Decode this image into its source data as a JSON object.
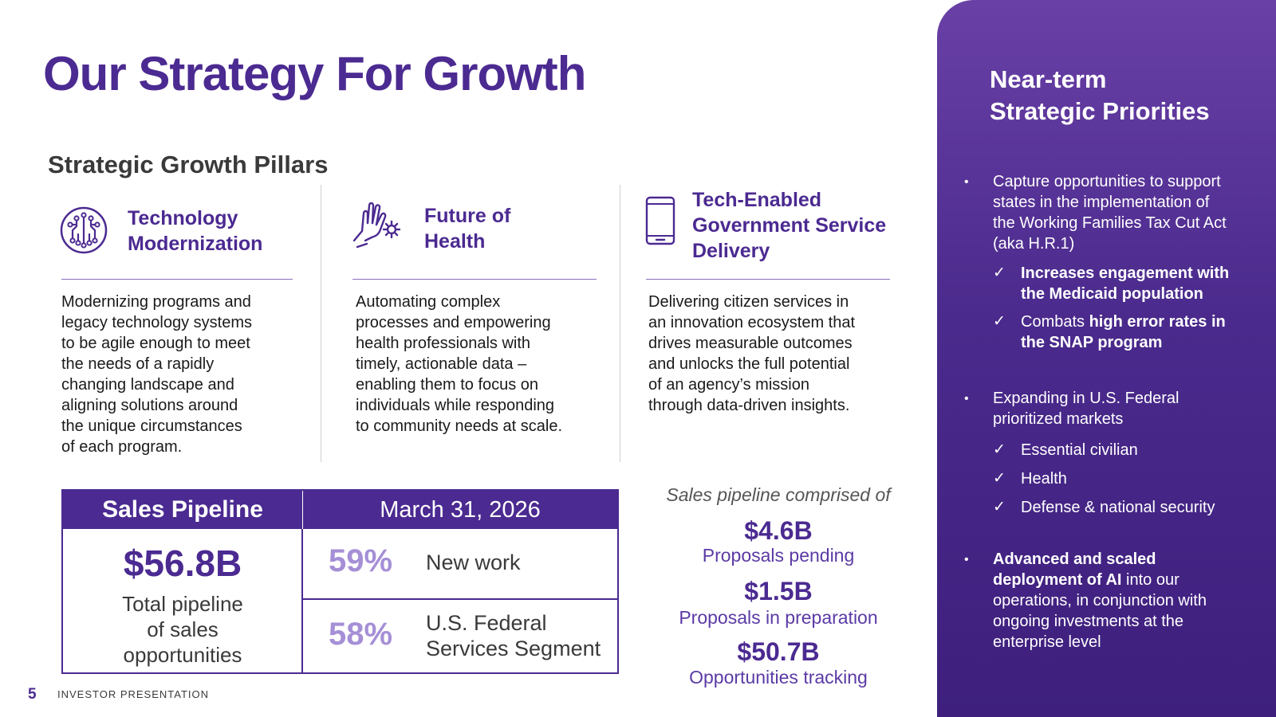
{
  "title": "Our Strategy For Growth",
  "pillars_heading": "Strategic Growth Pillars",
  "pillars": [
    {
      "icon": "circuit-chip-icon",
      "title_lines": [
        "Technology",
        "Modernization"
      ],
      "description_lines": [
        "Modernizing programs and",
        "legacy technology systems",
        "to be agile enough to meet",
        "the needs of a rapidly",
        "changing landscape and",
        "aligning solutions around",
        "the unique circumstances",
        "of each program."
      ]
    },
    {
      "icon": "hand-gear-icon",
      "title_lines": [
        "Future of",
        "Health"
      ],
      "description_lines": [
        "Automating complex",
        "processes and empowering",
        "health professionals with",
        "timely, actionable data –",
        "enabling them to focus on",
        "individuals while responding",
        "to community needs at scale."
      ]
    },
    {
      "icon": "mobile-phone-icon",
      "title_lines": [
        "Tech-Enabled",
        "Government Service",
        "Delivery"
      ],
      "description_lines": [
        "Delivering citizen services in",
        "an innovation ecosystem that",
        "drives measurable outcomes",
        "and unlocks the full potential",
        "of an agency’s mission",
        "through data-driven insights."
      ]
    }
  ],
  "pipeline": {
    "header_left": "Sales Pipeline",
    "header_right": "March 31, 2026",
    "total": "$56.8B",
    "total_label_lines": [
      "Total pipeline",
      "of sales",
      "opportunities"
    ],
    "rows": [
      {
        "pct": "59%",
        "label_lines": [
          "New work"
        ]
      },
      {
        "pct": "58%",
        "label_lines": [
          "U.S. Federal",
          "Services Segment"
        ]
      }
    ]
  },
  "comprised": {
    "title": "Sales pipeline comprised of",
    "items": [
      {
        "value": "$4.6B",
        "label": "Proposals pending"
      },
      {
        "value": "$1.5B",
        "label": "Proposals in preparation"
      },
      {
        "value": "$50.7B",
        "label": "Opportunities tracking"
      }
    ]
  },
  "footer": {
    "page": "5",
    "label": "INVESTOR PRESENTATION"
  },
  "priorities": {
    "title_lines": [
      "Near-term",
      "Strategic Priorities"
    ],
    "bullet_glyph": "•",
    "check_glyph": "✓",
    "b1": {
      "lines": [
        "Capture opportunities to support",
        "states in the implementation of",
        "the Working Families Tax Cut Act",
        "(aka H.R.1)"
      ]
    },
    "b1c1": {
      "lines": [
        "Increases engagement with",
        "the Medicaid population"
      ]
    },
    "b1c2": {
      "plain": "Combats ",
      "bold_lines": [
        "high error rates in",
        "the SNAP program"
      ]
    },
    "b2": {
      "lines": [
        "Expanding in U.S. Federal",
        "prioritized markets"
      ]
    },
    "b2c1": "Essential civilian",
    "b2c2": "Health",
    "b2c3": "Defense & national security",
    "b3": {
      "bold_lines": [
        "Advanced and scaled",
        "deployment of AI"
      ],
      "plain_after": " into our",
      "lines": [
        "operations, in conjunction with",
        "ongoing investments at the",
        "enterprise level"
      ]
    }
  },
  "colors": {
    "brand_purple": "#4b2a91",
    "light_purple": "#a58fd6",
    "panel_top": "#6940a6",
    "panel_bottom": "#3e1f7d"
  }
}
